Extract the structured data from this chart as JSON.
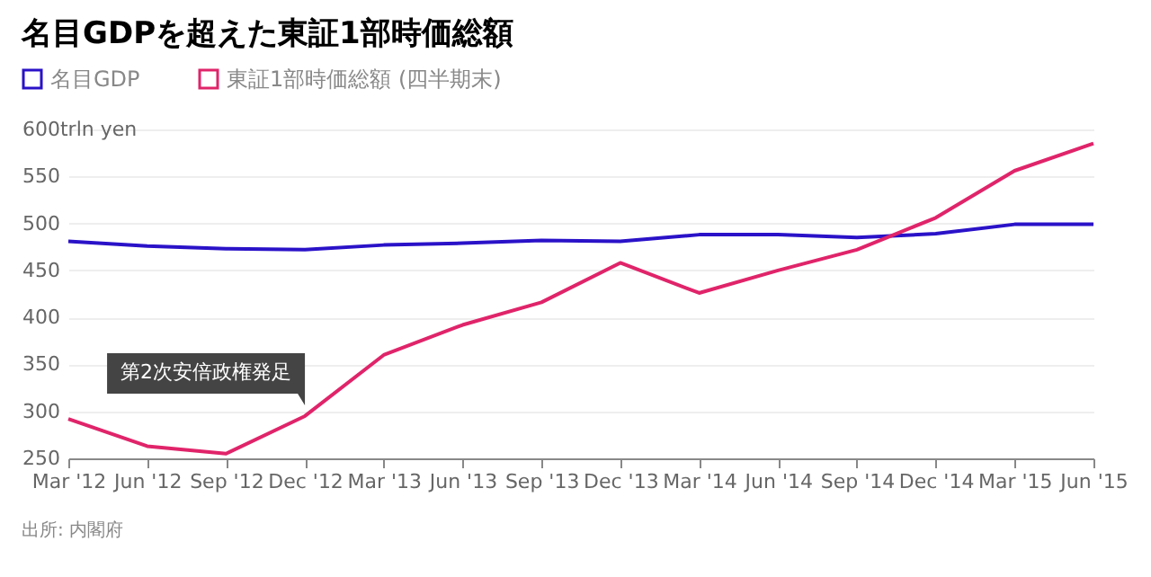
{
  "chart_data": {
    "type": "line",
    "title": "名目GDPを超えた東証1部時価総額",
    "categories": [
      "Mar '12",
      "Jun '12",
      "Sep '12",
      "Dec '12",
      "Mar '13",
      "Jun '13",
      "Sep '13",
      "Dec '13",
      "Mar '14",
      "Jun '14",
      "Sep '14",
      "Dec '14",
      "Mar '15",
      "Jun '15"
    ],
    "series": [
      {
        "name": "名目GDP",
        "color": "#2a12c8",
        "values": [
          481,
          476,
          473,
          472,
          477,
          479,
          482,
          481,
          488,
          488,
          485,
          489,
          499,
          499
        ]
      },
      {
        "name": "東証1部時価総額 (四半期末)",
        "color": "#e0246a",
        "values": [
          292,
          263,
          255,
          295,
          360,
          392,
          416,
          458,
          426,
          450,
          472,
          506,
          556,
          585
        ]
      }
    ],
    "ylim": [
      250,
      600
    ],
    "yticks": [
      250,
      300,
      350,
      400,
      450,
      500,
      550,
      {
        "value": 600,
        "label": "600trln yen"
      }
    ],
    "grid": "y",
    "legend": "top left",
    "marker": "none",
    "line_style": "solid",
    "annotations": [
      {
        "text": "第2次安倍政権発足",
        "x": "Dec '12",
        "y": 295
      },
      "出所: 内閣府"
    ]
  }
}
